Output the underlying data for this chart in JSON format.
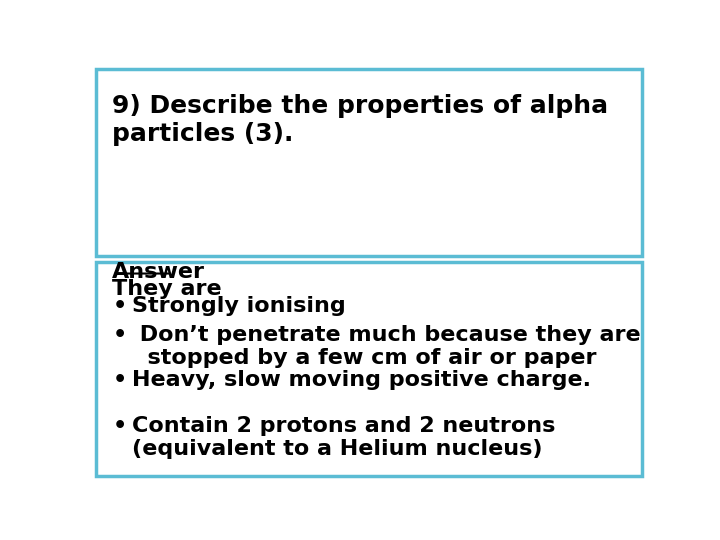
{
  "question_text": "9) Describe the properties of alpha\nparticles (3).",
  "answer_label": "Answer",
  "answer_intro": "They are",
  "bullets": [
    "Strongly ionising",
    " Don’t penetrate much because they are\n  stopped by a few cm of air or paper",
    "Heavy, slow moving positive charge.",
    "Contain 2 protons and 2 neutrons\n(equivalent to a Helium nucleus)"
  ],
  "bg_color": "#ffffff",
  "box_border_color": "#5bbcd4",
  "text_color": "#000000",
  "font_size": 16,
  "question_font_size": 18
}
